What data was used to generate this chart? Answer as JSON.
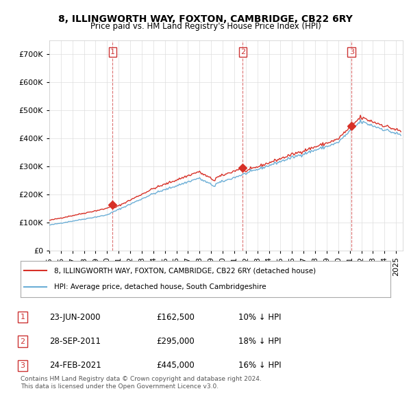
{
  "title_line1": "8, ILLINGWORTH WAY, FOXTON, CAMBRIDGE, CB22 6RY",
  "title_line2": "Price paid vs. HM Land Registry's House Price Index (HPI)",
  "hpi_color": "#6baed6",
  "price_color": "#d73027",
  "vline_color": "#cc0000",
  "ylim": [
    0,
    750000
  ],
  "yticks": [
    0,
    100000,
    200000,
    300000,
    400000,
    500000,
    600000,
    700000
  ],
  "ytick_labels": [
    "£0",
    "£100K",
    "£200K",
    "£300K",
    "£400K",
    "£500K",
    "£600K",
    "£700K"
  ],
  "sale_dates": [
    "2000-06-23",
    "2011-09-28",
    "2021-02-24"
  ],
  "sale_prices": [
    162500,
    295000,
    445000
  ],
  "sale_labels": [
    "1",
    "2",
    "3"
  ],
  "legend_line1": "8, ILLINGWORTH WAY, FOXTON, CAMBRIDGE, CB22 6RY (detached house)",
  "legend_line2": "HPI: Average price, detached house, South Cambridgeshire",
  "table_rows": [
    [
      "1",
      "23-JUN-2000",
      "£162,500",
      "10% ↓ HPI"
    ],
    [
      "2",
      "28-SEP-2011",
      "£295,000",
      "18% ↓ HPI"
    ],
    [
      "3",
      "24-FEB-2021",
      "£445,000",
      "16% ↓ HPI"
    ]
  ],
  "footnote": "Contains HM Land Registry data © Crown copyright and database right 2024.\nThis data is licensed under the Open Government Licence v3.0.",
  "background_color": "#ffffff",
  "grid_color": "#dddddd"
}
